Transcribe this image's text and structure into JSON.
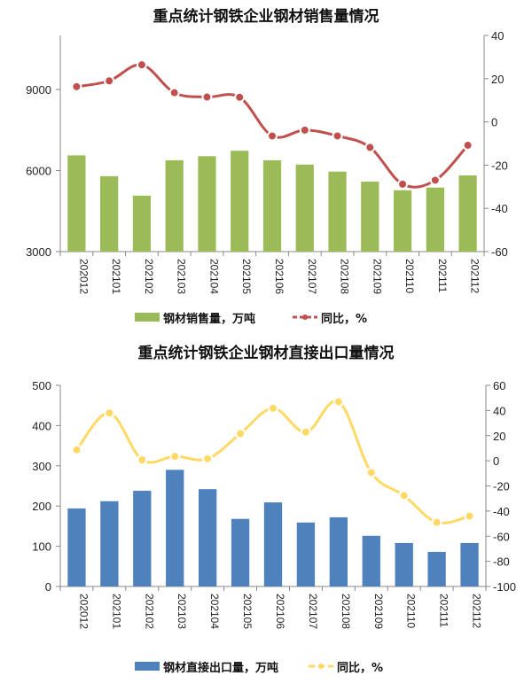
{
  "chart_data": [
    {
      "type": "bar+line",
      "title": "重点统计钢铁企业钢材销售量情况",
      "categories": [
        "202012",
        "202101",
        "202102",
        "202103",
        "202104",
        "202105",
        "202106",
        "202107",
        "202108",
        "202109",
        "202110",
        "202111",
        "202112"
      ],
      "series": [
        {
          "name": "钢材销售量，万吨",
          "type": "bar",
          "axis": "left",
          "color": "#9bbb59",
          "values": [
            6560,
            5790,
            5070,
            6380,
            6530,
            6730,
            6380,
            6220,
            5960,
            5590,
            5270,
            5370,
            5820
          ]
        },
        {
          "name": "同比，%",
          "type": "line",
          "axis": "right",
          "color": "#c0504d",
          "values": [
            16.3,
            19.0,
            26.4,
            13.5,
            11.5,
            11.4,
            -6.5,
            -3.8,
            -6.5,
            -11.8,
            -28.8,
            -27.0,
            -10.8
          ]
        }
      ],
      "y_left": {
        "range": [
          3000,
          11000
        ],
        "ticks": [
          3000,
          6000,
          9000
        ]
      },
      "y_right": {
        "range": [
          -60,
          40
        ],
        "ticks": [
          -60,
          -40,
          -20,
          0,
          20,
          40
        ]
      },
      "grid": false,
      "legend": "bottom"
    },
    {
      "type": "bar+line",
      "title": "重点统计钢铁企业钢材直接出口量情况",
      "categories": [
        "202012",
        "202101",
        "202102",
        "202103",
        "202104",
        "202105",
        "202106",
        "202107",
        "202108",
        "202109",
        "202110",
        "202111",
        "202112"
      ],
      "series": [
        {
          "name": "钢材直接出口量，万吨",
          "type": "bar",
          "axis": "left",
          "color": "#4f81bd",
          "values": [
            194,
            212,
            238,
            290,
            242,
            168,
            209,
            159,
            172,
            126,
            108,
            86,
            108
          ]
        },
        {
          "name": "同比，%",
          "type": "line",
          "axis": "right",
          "color": "#ffd966",
          "values": [
            8.7,
            38.0,
            0.7,
            3.5,
            1.6,
            21.6,
            41.8,
            22.8,
            47.0,
            -9.4,
            -27.7,
            -49.0,
            -44.0
          ]
        }
      ],
      "y_left": {
        "range": [
          0,
          500
        ],
        "ticks": [
          0,
          100,
          200,
          300,
          400,
          500
        ]
      },
      "y_right": {
        "range": [
          -100,
          60
        ],
        "ticks": [
          -100,
          -80,
          -60,
          -40,
          -20,
          0,
          20,
          40,
          60
        ]
      },
      "grid": false,
      "legend": "bottom"
    }
  ]
}
